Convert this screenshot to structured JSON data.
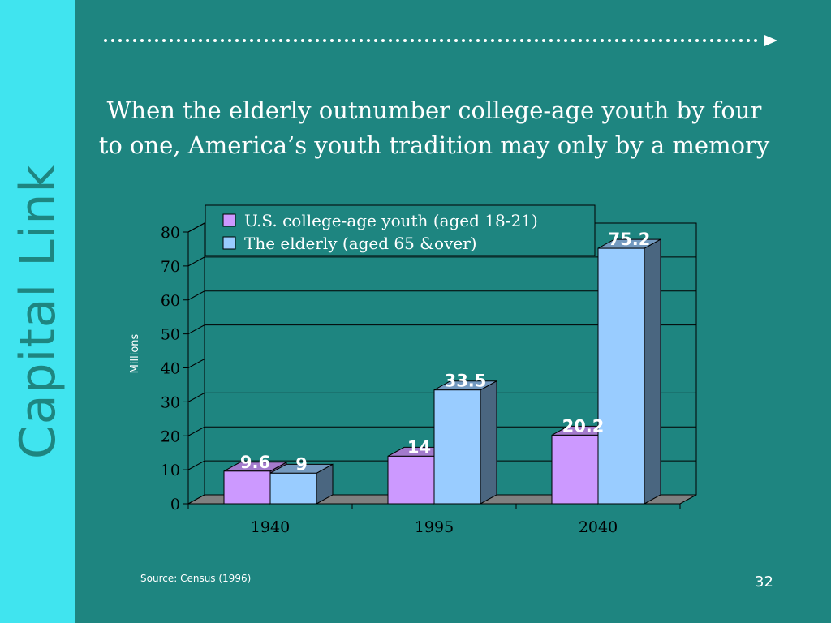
{
  "slide": {
    "brand": "Capital Link",
    "title_line1": "When the elderly outnumber college-age youth by four",
    "title_line2": "to one, America’s youth tradition may only by a memory",
    "source": "Source: Census (1996)",
    "page_number": "32"
  },
  "colors": {
    "background": "#1e8580",
    "sidebar": "#40e4ef",
    "youth": "#cc99ff",
    "elderly": "#99ccff"
  },
  "chart_data": {
    "type": "bar",
    "categories": [
      "1940",
      "1995",
      "2040"
    ],
    "series": [
      {
        "name": "U.S. college-age youth (aged 18-21)",
        "values": [
          9.6,
          14,
          20.2
        ],
        "labels": [
          "9.6",
          "14",
          "20.2"
        ]
      },
      {
        "name": "The elderly (aged 65 &over)",
        "values": [
          9,
          33.5,
          75.2
        ],
        "labels": [
          "9",
          "33.5",
          "75.2"
        ]
      }
    ],
    "ylabel": "Millions",
    "ylim": [
      0,
      80
    ],
    "yticks": [
      "0",
      "10",
      "20",
      "30",
      "40",
      "50",
      "60",
      "70",
      "80"
    ],
    "grid": true,
    "legend": "top"
  }
}
